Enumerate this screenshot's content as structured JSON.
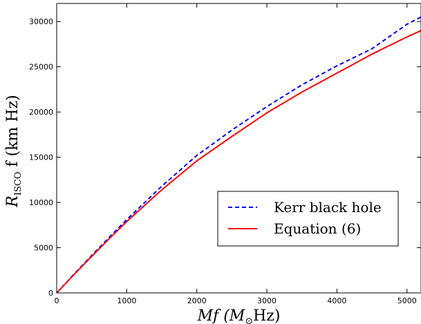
{
  "chart_data": {
    "type": "line",
    "xlabel": {
      "main": "Mf (M",
      "subscript": "⊙",
      "tail": "Hz)"
    },
    "ylabel": {
      "main": "R",
      "subscript": "ISCO",
      "tail": " f (km Hz)"
    },
    "xlim": [
      0,
      5200
    ],
    "ylim": [
      0,
      32000
    ],
    "xticks": [
      0,
      1000,
      2000,
      3000,
      4000,
      5000
    ],
    "xtick_labels": [
      "0",
      "1000",
      "2000",
      "3000",
      "4000",
      "5000"
    ],
    "yticks": [
      0,
      5000,
      10000,
      15000,
      20000,
      25000,
      30000
    ],
    "ytick_labels": [
      "0",
      "5000",
      "10000",
      "15000",
      "20000",
      "25000",
      "30000"
    ],
    "grid": false,
    "legend_position": "lower-right",
    "series": [
      {
        "name": "Kerr black hole",
        "color": "#0000ff",
        "style": "dashed",
        "x": [
          0,
          250,
          500,
          750,
          1000,
          1500,
          2000,
          2500,
          3000,
          3500,
          4000,
          4500,
          5000,
          5200
        ],
        "y": [
          0,
          2100,
          4150,
          6150,
          8100,
          11800,
          15200,
          18000,
          20600,
          23000,
          25100,
          27000,
          29700,
          30500
        ]
      },
      {
        "name": "Equation (6)",
        "color": "#ff0000",
        "style": "solid",
        "x": [
          0,
          250,
          500,
          750,
          1000,
          1500,
          2000,
          2500,
          3000,
          3500,
          4000,
          4500,
          5000,
          5200
        ],
        "y": [
          0,
          2050,
          4050,
          6000,
          7900,
          11400,
          14600,
          17300,
          19900,
          22200,
          24300,
          26400,
          28300,
          29000
        ]
      }
    ]
  }
}
